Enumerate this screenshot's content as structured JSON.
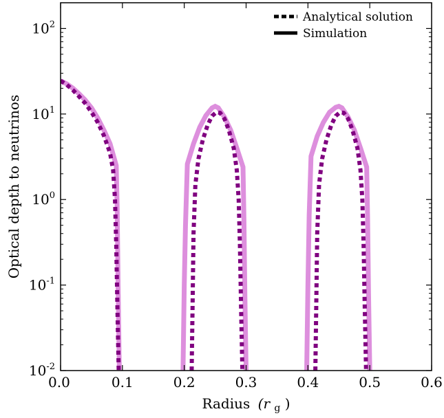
{
  "chart_data": {
    "type": "line",
    "title": "",
    "xlabel": "Radius",
    "xlabel_unit": "(r",
    "xlabel_unit_sub": "g",
    "xlabel_unit_close": ")",
    "ylabel": "Optical depth to neutrinos",
    "xlim": [
      0.0,
      0.6
    ],
    "ylim": [
      0.01,
      200
    ],
    "yscale": "log",
    "grid": false,
    "legend_position": "top-right",
    "x_ticks": [
      {
        "value": 0.0,
        "label": "0.0"
      },
      {
        "value": 0.1,
        "label": "0.1"
      },
      {
        "value": 0.2,
        "label": "0.2"
      },
      {
        "value": 0.3,
        "label": "0.3"
      },
      {
        "value": 0.4,
        "label": "0.4"
      },
      {
        "value": 0.5,
        "label": "0.5"
      },
      {
        "value": 0.6,
        "label": "0.6"
      }
    ],
    "y_ticks": [
      {
        "value": 0.01,
        "base": "10",
        "exp": "-2"
      },
      {
        "value": 0.1,
        "base": "10",
        "exp": "-1"
      },
      {
        "value": 1,
        "base": "10",
        "exp": "0"
      },
      {
        "value": 10,
        "base": "10",
        "exp": "1"
      },
      {
        "value": 100,
        "base": "10",
        "exp": "2"
      }
    ],
    "legend": [
      {
        "label": "Analytical solution",
        "style": "dashed"
      },
      {
        "label": "Simulation",
        "style": "solid"
      }
    ],
    "series": [
      {
        "name": "Simulation",
        "style": "solid",
        "color": "#dd8fdd",
        "segments": [
          [
            [
              0.0,
              24.5
            ],
            [
              0.01,
              22.5
            ],
            [
              0.02,
              20.0
            ],
            [
              0.03,
              17.2
            ],
            [
              0.04,
              14.5
            ],
            [
              0.05,
              11.8
            ],
            [
              0.06,
              9.0
            ],
            [
              0.07,
              6.5
            ],
            [
              0.08,
              4.5
            ],
            [
              0.09,
              2.5
            ],
            [
              0.0915,
              0.8
            ],
            [
              0.093,
              0.1
            ],
            [
              0.095,
              0.01
            ]
          ],
          [
            [
              0.198,
              0.01
            ],
            [
              0.2,
              0.1
            ],
            [
              0.202,
              0.5
            ],
            [
              0.205,
              2.6
            ],
            [
              0.215,
              4.5
            ],
            [
              0.225,
              7.0
            ],
            [
              0.235,
              9.6
            ],
            [
              0.245,
              11.8
            ],
            [
              0.25,
              12.3
            ],
            [
              0.255,
              11.8
            ],
            [
              0.265,
              9.2
            ],
            [
              0.275,
              6.5
            ],
            [
              0.285,
              4.0
            ],
            [
              0.295,
              2.4
            ],
            [
              0.2965,
              0.6
            ],
            [
              0.298,
              0.08
            ],
            [
              0.3,
              0.01
            ]
          ],
          [
            [
              0.398,
              0.01
            ],
            [
              0.4,
              0.1
            ],
            [
              0.402,
              0.65
            ],
            [
              0.405,
              3.2
            ],
            [
              0.415,
              5.5
            ],
            [
              0.425,
              8.0
            ],
            [
              0.435,
              10.5
            ],
            [
              0.445,
              12.0
            ],
            [
              0.45,
              12.3
            ],
            [
              0.455,
              11.8
            ],
            [
              0.465,
              9.2
            ],
            [
              0.475,
              6.5
            ],
            [
              0.485,
              4.0
            ],
            [
              0.495,
              2.4
            ],
            [
              0.4965,
              0.6
            ],
            [
              0.498,
              0.08
            ],
            [
              0.5,
              0.01
            ]
          ]
        ]
      },
      {
        "name": "Analytical solution",
        "style": "dashed",
        "color": "#800080",
        "segments": [
          [
            [
              0.0,
              24.5
            ],
            [
              0.01,
              22.0
            ],
            [
              0.02,
              19.0
            ],
            [
              0.03,
              16.0
            ],
            [
              0.04,
              13.3
            ],
            [
              0.05,
              10.5
            ],
            [
              0.06,
              8.0
            ],
            [
              0.07,
              5.6
            ],
            [
              0.08,
              3.5
            ],
            [
              0.085,
              2.2
            ],
            [
              0.088,
              1.0
            ],
            [
              0.09,
              0.3
            ],
            [
              0.092,
              0.05
            ],
            [
              0.094,
              0.01
            ]
          ],
          [
            [
              0.212,
              0.01
            ],
            [
              0.2135,
              0.06
            ],
            [
              0.215,
              0.4
            ],
            [
              0.218,
              1.5
            ],
            [
              0.223,
              3.0
            ],
            [
              0.23,
              5.0
            ],
            [
              0.238,
              7.5
            ],
            [
              0.245,
              9.5
            ],
            [
              0.252,
              10.5
            ],
            [
              0.258,
              10.3
            ],
            [
              0.265,
              8.8
            ],
            [
              0.272,
              6.5
            ],
            [
              0.28,
              4.0
            ],
            [
              0.285,
              2.2
            ],
            [
              0.288,
              1.0
            ],
            [
              0.29,
              0.3
            ],
            [
              0.292,
              0.05
            ],
            [
              0.294,
              0.01
            ]
          ],
          [
            [
              0.412,
              0.01
            ],
            [
              0.4135,
              0.06
            ],
            [
              0.415,
              0.4
            ],
            [
              0.418,
              1.5
            ],
            [
              0.423,
              3.0
            ],
            [
              0.43,
              5.0
            ],
            [
              0.438,
              7.5
            ],
            [
              0.445,
              9.5
            ],
            [
              0.452,
              10.5
            ],
            [
              0.458,
              10.3
            ],
            [
              0.465,
              8.8
            ],
            [
              0.472,
              6.5
            ],
            [
              0.48,
              4.0
            ],
            [
              0.485,
              2.2
            ],
            [
              0.488,
              1.0
            ],
            [
              0.49,
              0.3
            ],
            [
              0.492,
              0.05
            ],
            [
              0.494,
              0.01
            ]
          ]
        ]
      }
    ]
  }
}
